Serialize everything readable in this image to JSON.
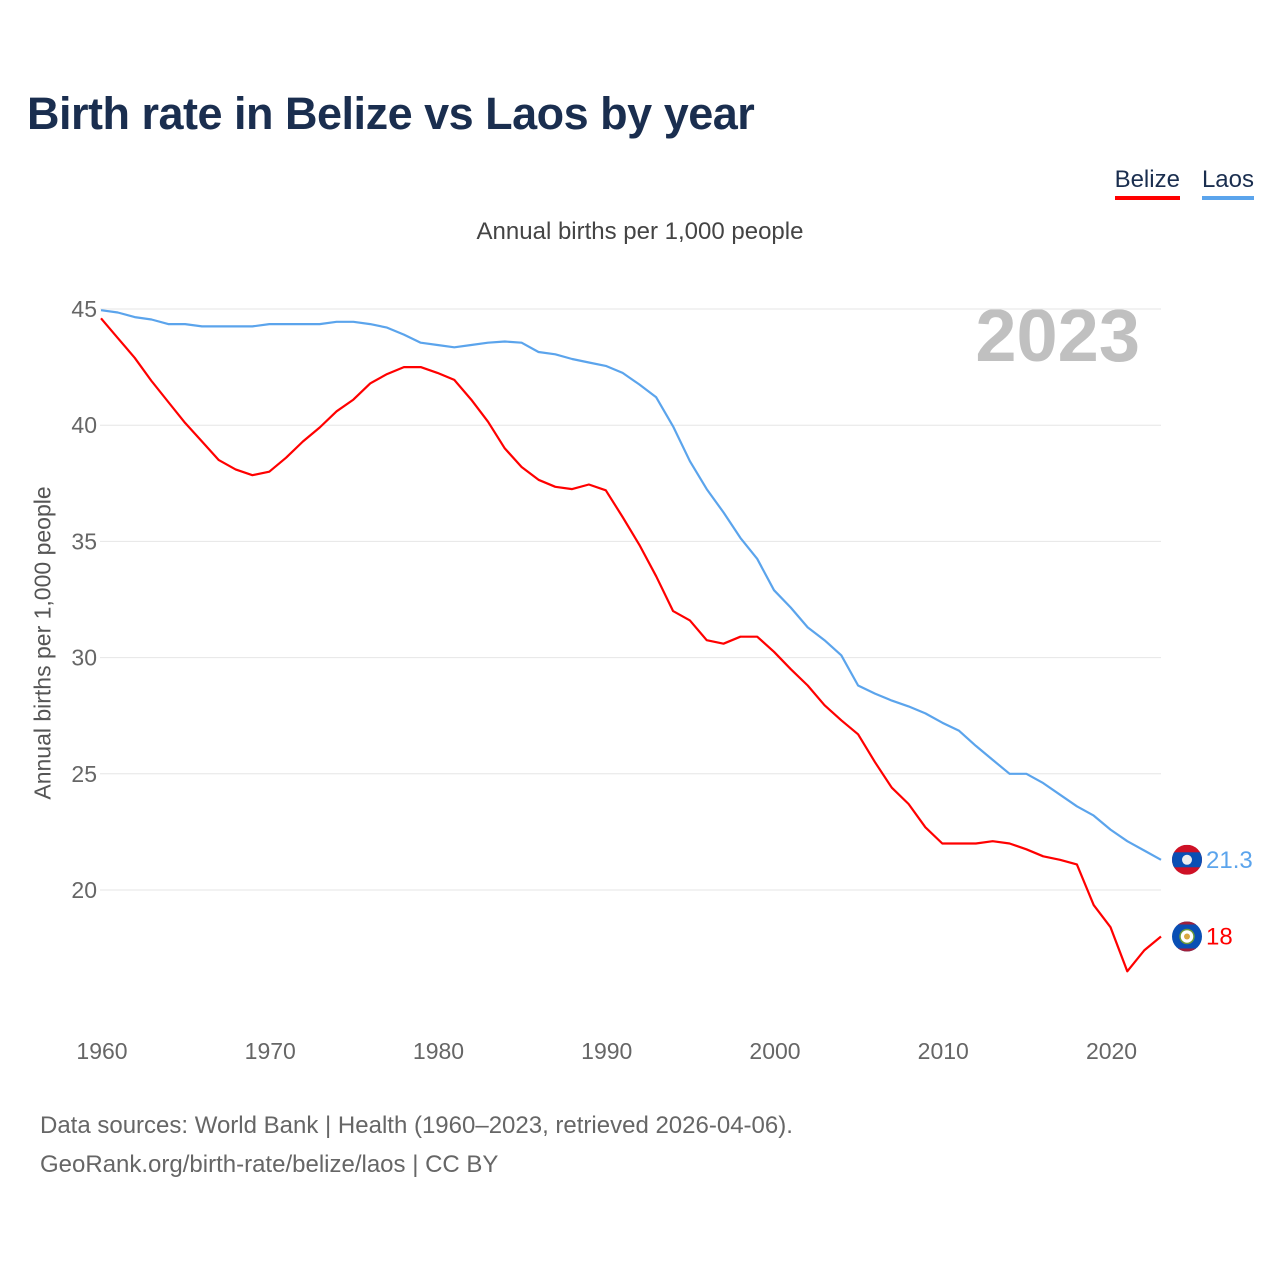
{
  "chart_data": {
    "type": "line",
    "title": "Birth rate in Belize vs Laos by year",
    "subtitle": "Annual births per 1,000 people",
    "ylabel": "Annual births per 1,000 people",
    "xlabel": "",
    "year_label": "2023",
    "xlim": [
      1960,
      2023
    ],
    "ylim": [
      15,
      45
    ],
    "x_ticks": [
      "1960",
      "1970",
      "1980",
      "1990",
      "2000",
      "2010",
      "2020"
    ],
    "y_ticks": [
      "20",
      "25",
      "30",
      "35",
      "40",
      "45"
    ],
    "grid": true,
    "legend_placement": "top-right",
    "x": [
      1960,
      1961,
      1962,
      1963,
      1964,
      1965,
      1966,
      1967,
      1968,
      1969,
      1970,
      1971,
      1972,
      1973,
      1974,
      1975,
      1976,
      1977,
      1978,
      1979,
      1980,
      1981,
      1982,
      1983,
      1984,
      1985,
      1986,
      1987,
      1988,
      1989,
      1990,
      1991,
      1992,
      1993,
      1994,
      1995,
      1996,
      1997,
      1998,
      1999,
      2000,
      2001,
      2002,
      2003,
      2004,
      2005,
      2006,
      2007,
      2008,
      2009,
      2010,
      2011,
      2012,
      2013,
      2014,
      2015,
      2016,
      2017,
      2018,
      2019,
      2020,
      2021,
      2022,
      2023
    ],
    "series": [
      {
        "name": "Belize",
        "color": "#ff0000",
        "end_label": "18",
        "values": [
          44.6,
          43.75,
          42.9,
          41.9,
          41.0,
          40.1,
          39.3,
          38.5,
          38.1,
          37.85,
          38.0,
          38.6,
          39.3,
          39.9,
          40.6,
          41.1,
          41.8,
          42.2,
          42.5,
          42.5,
          42.25,
          41.95,
          41.1,
          40.15,
          39.0,
          38.2,
          37.65,
          37.35,
          37.25,
          37.45,
          37.2,
          36.05,
          34.85,
          33.5,
          32.0,
          31.6,
          30.75,
          30.6,
          30.9,
          30.9,
          30.25,
          29.5,
          28.8,
          27.95,
          27.3,
          26.7,
          25.5,
          24.4,
          23.7,
          22.7,
          22.0,
          22.0,
          22.0,
          22.1,
          22.0,
          21.75,
          21.45,
          21.3,
          21.1,
          19.35,
          18.4,
          16.5,
          17.4,
          18.0
        ]
      },
      {
        "name": "Laos",
        "color": "#5ba4ec",
        "end_label": "21.3",
        "values": [
          44.95,
          44.85,
          44.65,
          44.55,
          44.35,
          44.35,
          44.25,
          44.25,
          44.25,
          44.25,
          44.35,
          44.35,
          44.35,
          44.35,
          44.45,
          44.45,
          44.35,
          44.2,
          43.9,
          43.55,
          43.45,
          43.35,
          43.45,
          43.55,
          43.6,
          43.55,
          43.15,
          43.05,
          42.85,
          42.7,
          42.55,
          42.25,
          41.75,
          41.2,
          39.95,
          38.45,
          37.25,
          36.25,
          35.15,
          34.25,
          32.9,
          32.15,
          31.3,
          30.75,
          30.1,
          28.8,
          28.45,
          28.15,
          27.9,
          27.6,
          27.2,
          26.85,
          26.2,
          25.6,
          25.0,
          25.0,
          24.6,
          24.1,
          23.6,
          23.2,
          22.6,
          22.1,
          21.7,
          21.3
        ]
      }
    ]
  },
  "legend": {
    "belize": "Belize",
    "laos": "Laos"
  },
  "footer": {
    "line1": "Data sources: World Bank | Health (1960–2023, retrieved 2026-04-06).",
    "line2": "GeoRank.org/birth-rate/belize/laos | CC BY"
  }
}
